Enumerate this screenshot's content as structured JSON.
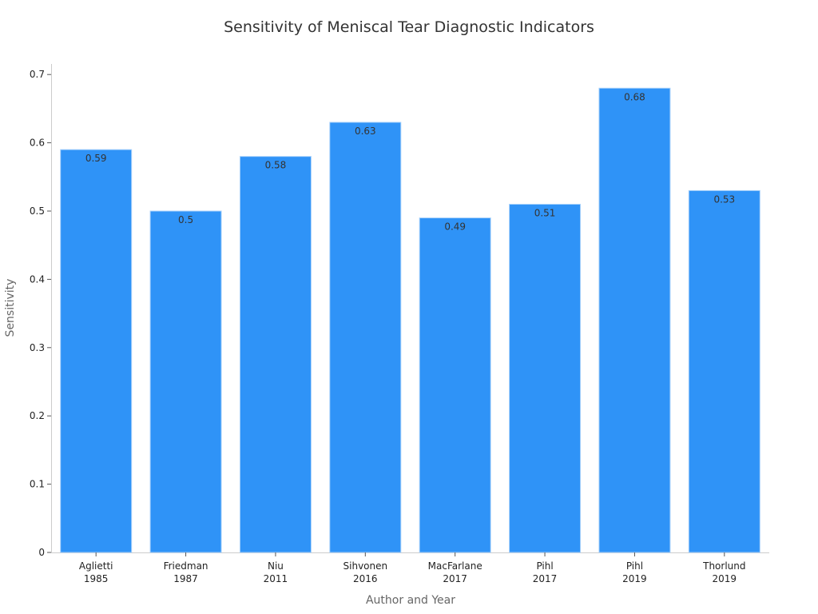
{
  "chart_data": {
    "type": "bar",
    "title": "Sensitivity of Meniscal Tear Diagnostic Indicators",
    "xlabel": "Author and Year",
    "ylabel": "Sensitivity",
    "categories": [
      "Aglietti\n1985",
      "Friedman\n1987",
      "Niu\n2011",
      "Sihvonen\n2016",
      "MacFarlane\n2017",
      "Pihl\n2017",
      "Pihl\n2019",
      "Thorlund\n2019"
    ],
    "values": [
      0.59,
      0.5,
      0.58,
      0.63,
      0.49,
      0.51,
      0.68,
      0.53
    ],
    "data_labels": [
      "0.59",
      "0.5",
      "0.58",
      "0.63",
      "0.49",
      "0.51",
      "0.68",
      "0.53"
    ],
    "ylim": [
      0,
      0.715
    ],
    "yticks": [
      0,
      0.1,
      0.2,
      0.3,
      0.4,
      0.5,
      0.6,
      0.7
    ],
    "ytick_labels": [
      "0",
      "0.1",
      "0.2",
      "0.3",
      "0.4",
      "0.5",
      "0.6",
      "0.7"
    ],
    "grid": false,
    "bar_color": "#2f93f7",
    "bar_edge_color": "#a9d2fb"
  }
}
